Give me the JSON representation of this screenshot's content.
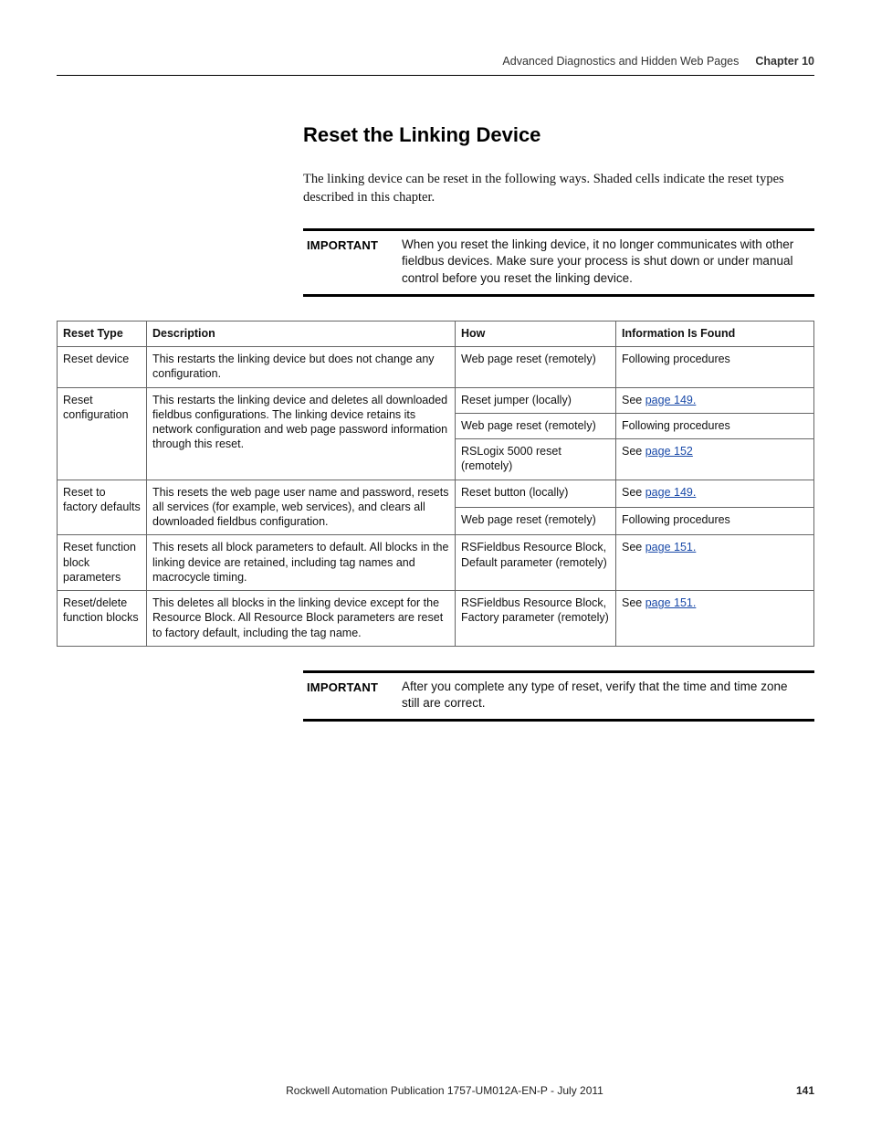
{
  "running_head": {
    "title": "Advanced Diagnostics and Hidden Web Pages",
    "chapter": "Chapter 10"
  },
  "heading": "Reset the Linking Device",
  "intro": "The linking device can be reset in the following ways. Shaded cells indicate the reset types described in this chapter.",
  "important1": {
    "label": "IMPORTANT",
    "text": "When you reset the linking device, it no longer communicates with other fieldbus devices. Make sure your process is shut down or under manual control before you reset the linking device."
  },
  "table": {
    "headers": [
      "Reset Type",
      "Description",
      "How",
      "Information Is Found"
    ],
    "rows": [
      {
        "reset_type": "Reset device",
        "description": "This restarts the linking device but does not change any configuration.",
        "how_info": [
          {
            "how": "Web page reset (remotely)",
            "info_prefix": "Following procedures",
            "link": ""
          }
        ]
      },
      {
        "reset_type": "Reset configuration",
        "description": "This restarts the linking device and deletes all downloaded fieldbus configurations. The linking device retains its network configuration and web page password information through this reset.",
        "how_info": [
          {
            "how": "Reset jumper (locally)",
            "info_prefix": "See ",
            "link": "page 149."
          },
          {
            "how": "Web page reset (remotely)",
            "info_prefix": "Following procedures",
            "link": ""
          },
          {
            "how": "RSLogix 5000 reset (remotely)",
            "info_prefix": "See ",
            "link": "page 152"
          }
        ]
      },
      {
        "reset_type": "Reset to factory defaults",
        "description": "This resets the web page user name and password, resets all services (for example, web services), and clears all downloaded fieldbus configuration.",
        "how_info": [
          {
            "how": "Reset button (locally)",
            "info_prefix": "See ",
            "link": "page 149."
          },
          {
            "how": "Web page reset (remotely)",
            "info_prefix": "Following procedures",
            "link": ""
          }
        ]
      },
      {
        "reset_type": "Reset function block parameters",
        "description": "This resets all block parameters to default. All blocks in the linking device are retained, including tag names and macrocycle timing.",
        "how_info": [
          {
            "how": "RSFieldbus Resource Block, Default parameter (remotely)",
            "info_prefix": "See ",
            "link": "page 151."
          }
        ]
      },
      {
        "reset_type": "Reset/delete function blocks",
        "description": "This deletes all blocks in the linking device except for the Resource Block. All Resource Block parameters are reset to factory default, including the tag name.",
        "how_info": [
          {
            "how": "RSFieldbus Resource Block, Factory parameter (remotely)",
            "info_prefix": "See ",
            "link": "page 151."
          }
        ]
      }
    ]
  },
  "important2": {
    "label": "IMPORTANT",
    "text": "After you complete any type of reset, verify that the time and time zone still are correct."
  },
  "footer": {
    "publication": "Rockwell Automation Publication 1757-UM012A-EN-P - July 2011",
    "page": "141"
  }
}
